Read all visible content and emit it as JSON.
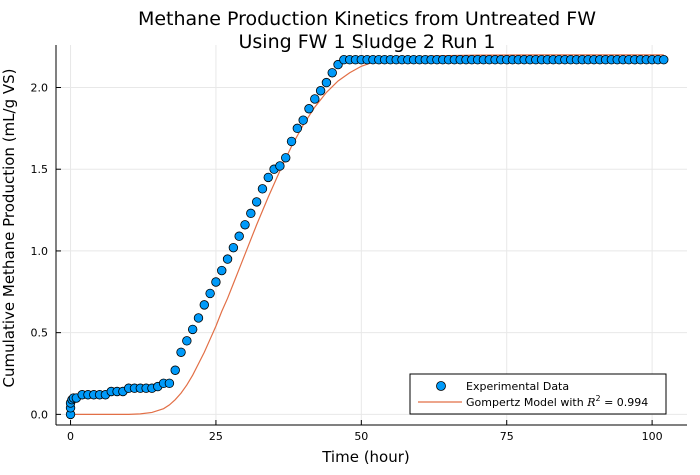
{
  "chart_data": {
    "type": "scatter",
    "title_lines": [
      "Methane Production Kinetics from Untreated FW",
      "Using FW 1 Sludge 2 Run 1"
    ],
    "xlabel": "Time (hour)",
    "ylabel": "Cumulative Methane Production (mL/g VS)",
    "xlim": [
      -2.5,
      106
    ],
    "ylim": [
      -0.065,
      2.26
    ],
    "xticks": [
      0,
      25,
      50,
      75,
      100
    ],
    "xtick_labels": [
      "0",
      "25",
      "50",
      "75",
      "100"
    ],
    "yticks": [
      0,
      0.5,
      1.0,
      1.5,
      2.0
    ],
    "ytick_labels": [
      "0.0",
      "0.5",
      "1.0",
      "1.5",
      "2.0"
    ],
    "grid": true,
    "legend_position": "bottom-right",
    "colors": {
      "scatter": "#009af9",
      "model": "#e26f46"
    },
    "series": [
      {
        "name": "Experimental Data",
        "kind": "scatter",
        "x": [
          0,
          0,
          0,
          0.25,
          0.5,
          1,
          2,
          3,
          4,
          5,
          6,
          7,
          8,
          9,
          10,
          11,
          12,
          13,
          14,
          15,
          16,
          17,
          18,
          19,
          20,
          21,
          22,
          23,
          24,
          25,
          26,
          27,
          28,
          29,
          30,
          31,
          32,
          33,
          34,
          35,
          36,
          37,
          38,
          39,
          40,
          41,
          42,
          43,
          44,
          45,
          46,
          47,
          48,
          49,
          50,
          51,
          52,
          53,
          54,
          55,
          56,
          57,
          58,
          59,
          60,
          61,
          62,
          63,
          64,
          65,
          66,
          67,
          68,
          69,
          70,
          71,
          72,
          73,
          74,
          75,
          76,
          77,
          78,
          79,
          80,
          81,
          82,
          83,
          84,
          85,
          86,
          87,
          88,
          89,
          90,
          91,
          92,
          93,
          94,
          95,
          96,
          97,
          98,
          99,
          100,
          101,
          102
        ],
        "y": [
          0.0,
          0.04,
          0.07,
          0.09,
          0.1,
          0.1,
          0.12,
          0.12,
          0.12,
          0.12,
          0.12,
          0.14,
          0.14,
          0.14,
          0.16,
          0.16,
          0.16,
          0.16,
          0.16,
          0.17,
          0.19,
          0.19,
          0.27,
          0.38,
          0.45,
          0.52,
          0.59,
          0.67,
          0.74,
          0.81,
          0.88,
          0.95,
          1.02,
          1.09,
          1.16,
          1.23,
          1.3,
          1.38,
          1.45,
          1.5,
          1.52,
          1.57,
          1.67,
          1.75,
          1.8,
          1.87,
          1.93,
          1.98,
          2.03,
          2.09,
          2.14,
          2.17,
          2.17,
          2.17,
          2.17,
          2.17,
          2.17,
          2.17,
          2.17,
          2.17,
          2.17,
          2.17,
          2.17,
          2.17,
          2.17,
          2.17,
          2.17,
          2.17,
          2.17,
          2.17,
          2.17,
          2.17,
          2.17,
          2.17,
          2.17,
          2.17,
          2.17,
          2.17,
          2.17,
          2.17,
          2.17,
          2.17,
          2.17,
          2.17,
          2.17,
          2.17,
          2.17,
          2.17,
          2.17,
          2.17,
          2.17,
          2.17,
          2.17,
          2.17,
          2.17,
          2.17,
          2.17,
          2.17,
          2.17,
          2.17,
          2.17,
          2.17,
          2.17,
          2.17,
          2.17,
          2.17,
          2.17
        ]
      },
      {
        "name_prefix": "Gompertz Model with ",
        "name_math_base": "R",
        "name_math_sup": "2",
        "name_suffix": " = 0.994",
        "kind": "line",
        "x": [
          0,
          5,
          10,
          12,
          14,
          16,
          17,
          18,
          19,
          20,
          21,
          22,
          23,
          24,
          25,
          26,
          27,
          28,
          29,
          30,
          32,
          34,
          36,
          38,
          40,
          42,
          44,
          46,
          48,
          50,
          52,
          55,
          58,
          62,
          66,
          70,
          80,
          90,
          102
        ],
        "y": [
          0.0,
          0.0,
          0.0,
          0.003,
          0.012,
          0.035,
          0.058,
          0.09,
          0.13,
          0.18,
          0.24,
          0.31,
          0.38,
          0.46,
          0.54,
          0.63,
          0.71,
          0.8,
          0.89,
          0.98,
          1.16,
          1.33,
          1.49,
          1.64,
          1.77,
          1.88,
          1.97,
          2.04,
          2.09,
          2.13,
          2.155,
          2.175,
          2.185,
          2.193,
          2.196,
          2.198,
          2.2,
          2.2,
          2.2
        ]
      }
    ]
  }
}
